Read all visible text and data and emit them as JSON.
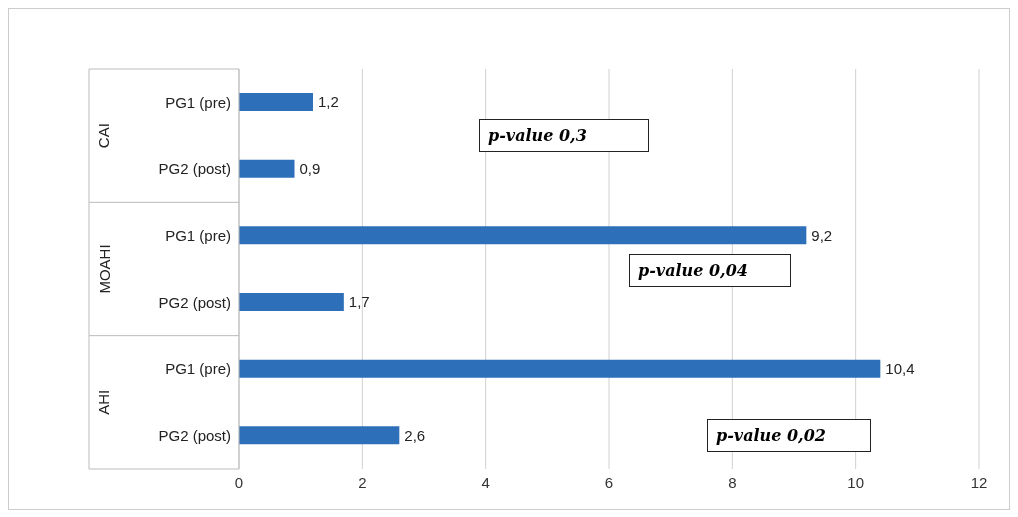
{
  "chart_data": {
    "type": "bar",
    "orientation": "horizontal",
    "categories": [
      "PG1 (pre)",
      "PG2 (post)",
      "PG1 (pre)",
      "PG2 (post)",
      "PG1 (pre)",
      "PG2 (post)"
    ],
    "values": [
      1.2,
      0.9,
      9.2,
      1.7,
      10.4,
      2.6
    ],
    "color": "#2e6fba",
    "xlim": [
      0,
      12
    ],
    "xticks": [
      0,
      2,
      4,
      6,
      8,
      10,
      12
    ],
    "grid": "x",
    "value_labels": [
      "1,2",
      "0,9",
      "9,2",
      "1,7",
      "10,4",
      "2,6"
    ],
    "annotations": [
      "CAI",
      "MOAHI",
      "AHI",
      "p-value 0,3",
      "p-value 0,04",
      "p-value 0,02"
    ]
  }
}
